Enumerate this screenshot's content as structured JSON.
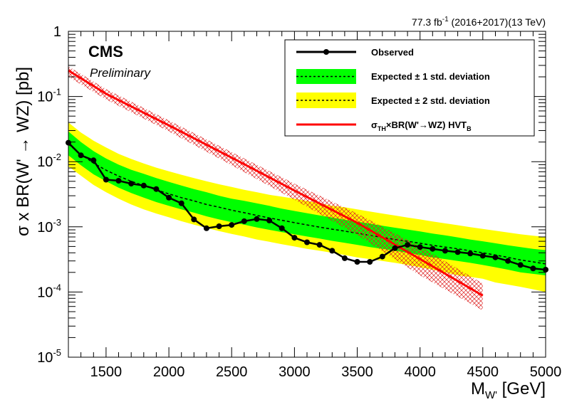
{
  "lumi": {
    "value": "77.3 fb",
    "sup": "-1",
    "rest": " (2016+2017)(13 TeV)"
  },
  "cms_label": "CMS",
  "cms_sub": "Preliminary",
  "colors": {
    "band1": "#00ff00",
    "band2": "#ffff00",
    "theory": "#ff0000",
    "hatch": "#dd2222",
    "observed": "#000000"
  },
  "chart_data": {
    "type": "line",
    "xlabel": {
      "main": "M",
      "sub": "W'",
      "rest": " [GeV]"
    },
    "ylabel": "σ x BR(W' → WZ) [pb]",
    "xlim": [
      1200,
      5000
    ],
    "ylim": [
      1e-05,
      1
    ],
    "log_y": true,
    "x_ticks": [
      "1500",
      "2000",
      "2500",
      "3000",
      "3500",
      "4000",
      "4500",
      "5000"
    ],
    "y_ticks": [
      {
        "base": "10",
        "exp": "-5",
        "value": 1e-05
      },
      {
        "base": "10",
        "exp": "-4",
        "value": 0.0001
      },
      {
        "base": "10",
        "exp": "-3",
        "value": 0.001
      },
      {
        "base": "10",
        "exp": "-2",
        "value": 0.01
      },
      {
        "base": "10",
        "exp": "-1",
        "value": 0.1
      },
      {
        "base": "1",
        "exp": "",
        "value": 1
      }
    ],
    "legend": [
      {
        "label": "Observed",
        "style": "observed"
      },
      {
        "label": "Expected ± 1 std. deviation",
        "style": "band1"
      },
      {
        "label": "Expected ± 2 std. deviation",
        "style": "band2"
      },
      {
        "label_main": "σ",
        "label_sub": "TH",
        "label_mid": "×BR(W'→WZ) HVT",
        "label_sub2": "B",
        "style": "theory"
      }
    ],
    "legend_position": "top-right",
    "x": [
      1200,
      1300,
      1400,
      1500,
      1600,
      1700,
      1800,
      1900,
      2000,
      2100,
      2200,
      2300,
      2400,
      2500,
      2600,
      2700,
      2800,
      2900,
      3000,
      3100,
      3200,
      3300,
      3400,
      3500,
      3600,
      3700,
      3800,
      3900,
      4000,
      4100,
      4200,
      4300,
      4400,
      4500,
      4600,
      4700,
      4800,
      4900,
      5000
    ],
    "series": [
      {
        "name": "Observed",
        "values": [
          0.0195,
          0.0125,
          0.0105,
          0.0053,
          0.0051,
          0.0046,
          0.0043,
          0.0038,
          0.0028,
          0.0023,
          0.0013,
          0.00095,
          0.00102,
          0.00107,
          0.00122,
          0.00132,
          0.00125,
          0.00095,
          0.00068,
          0.00058,
          0.00053,
          0.00043,
          0.00033,
          0.00029,
          0.00029,
          0.00035,
          0.00047,
          0.00053,
          0.00049,
          0.00046,
          0.00043,
          0.00041,
          0.00039,
          0.00036,
          0.00034,
          0.0003,
          0.00026,
          0.00023,
          0.00022
        ]
      },
      {
        "name": "Expected",
        "values": [
          0.0185,
          0.013,
          0.0095,
          0.0074,
          0.006,
          0.005,
          0.0043,
          0.0037,
          0.0032,
          0.0028,
          0.0025,
          0.0022,
          0.002,
          0.0018,
          0.00165,
          0.0015,
          0.00137,
          0.00126,
          0.00116,
          0.00107,
          0.00099,
          0.00092,
          0.00086,
          0.0008,
          0.00074,
          0.00069,
          0.00064,
          0.0006,
          0.00056,
          0.00052,
          0.00049,
          0.00046,
          0.00043,
          0.0004,
          0.00037,
          0.00034,
          0.00031,
          0.00029,
          0.00027
        ]
      },
      {
        "name": "+1 std",
        "values": [
          0.029,
          0.02,
          0.0145,
          0.0112,
          0.009,
          0.0075,
          0.0065,
          0.0056,
          0.0049,
          0.0043,
          0.0038,
          0.0034,
          0.003,
          0.0027,
          0.0025,
          0.0023,
          0.0021,
          0.0019,
          0.00175,
          0.00162,
          0.0015,
          0.00139,
          0.00129,
          0.0012,
          0.00112,
          0.00104,
          0.00097,
          0.00091,
          0.00085,
          0.00079,
          0.00074,
          0.00069,
          0.00064,
          0.0006,
          0.00056,
          0.00052,
          0.00049,
          0.00046,
          0.00044
        ]
      },
      {
        "name": "-1 std",
        "values": [
          0.0125,
          0.0088,
          0.0064,
          0.005,
          0.004,
          0.0033,
          0.0028,
          0.0024,
          0.0021,
          0.00185,
          0.00165,
          0.00145,
          0.0013,
          0.00118,
          0.00108,
          0.00098,
          0.0009,
          0.00083,
          0.00077,
          0.00071,
          0.00066,
          0.00061,
          0.00057,
          0.00053,
          0.00049,
          0.00046,
          0.00043,
          0.0004,
          0.00037,
          0.00034,
          0.00032,
          0.0003,
          0.00028,
          0.00026,
          0.00024,
          0.00022,
          0.0002,
          0.00019,
          0.00018
        ]
      },
      {
        "name": "+2 std",
        "values": [
          0.04,
          0.028,
          0.021,
          0.0165,
          0.0132,
          0.011,
          0.0094,
          0.0081,
          0.0071,
          0.0063,
          0.0056,
          0.005,
          0.0045,
          0.0041,
          0.0037,
          0.0034,
          0.0031,
          0.0029,
          0.0027,
          0.0025,
          0.0023,
          0.0021,
          0.002,
          0.00185,
          0.00172,
          0.0016,
          0.00149,
          0.00139,
          0.0013,
          0.00121,
          0.00113,
          0.00106,
          0.00099,
          0.00093,
          0.00087,
          0.00082,
          0.00077,
          0.00073,
          0.0007
        ]
      },
      {
        "name": "-2 std",
        "values": [
          0.0085,
          0.0061,
          0.0044,
          0.0034,
          0.0027,
          0.0022,
          0.00185,
          0.0016,
          0.0014,
          0.00122,
          0.00108,
          0.00096,
          0.00086,
          0.00078,
          0.00071,
          0.00064,
          0.00059,
          0.00054,
          0.0005,
          0.00046,
          0.00043,
          0.0004,
          0.00037,
          0.00034,
          0.00032,
          0.0003,
          0.00028,
          0.00026,
          0.00024,
          0.00022,
          0.0002,
          0.00018,
          0.00017,
          0.00016,
          0.00014,
          0.00013,
          0.00012,
          0.00011,
          0.0001
        ]
      }
    ],
    "theory": {
      "x": [
        1200,
        1500,
        2000,
        2500,
        3000,
        3500,
        4000,
        4500
      ],
      "values": [
        0.25,
        0.11,
        0.036,
        0.0115,
        0.0036,
        0.00115,
        0.00032,
        8.8e-05
      ],
      "unc_lo": [
        0.2,
        0.09,
        0.029,
        0.0088,
        0.0026,
        0.00075,
        0.00018,
        5.2e-05
      ],
      "unc_hi": [
        0.29,
        0.13,
        0.043,
        0.014,
        0.0046,
        0.0016,
        0.0005,
        0.000135
      ]
    }
  }
}
